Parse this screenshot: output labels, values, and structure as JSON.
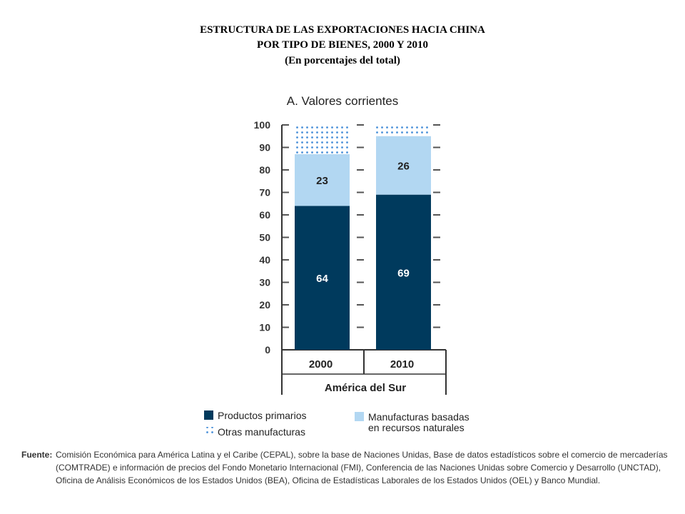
{
  "title": {
    "line1": "ESTRUCTURA DE LAS EXPORTACIONES HACIA CHINA",
    "line2": "POR TIPO DE BIENES, 2000 Y 2010",
    "line3": "(En porcentajes del total)"
  },
  "chart_data": {
    "type": "bar",
    "stacked": true,
    "title": "A. Valores corrientes",
    "categories": [
      "2000",
      "2010"
    ],
    "group_label": "América del Sur",
    "ylim": [
      0,
      100
    ],
    "y_ticks": [
      0,
      10,
      20,
      30,
      40,
      50,
      60,
      70,
      80,
      90,
      100
    ],
    "series": [
      {
        "name": "Productos primarios",
        "values": [
          64,
          69
        ],
        "labels": [
          "64",
          "69"
        ],
        "color": "#003a5d"
      },
      {
        "name": "Manufacturas basadas en recursos naturales",
        "values": [
          23,
          26
        ],
        "labels": [
          "23",
          "26"
        ],
        "color": "#b2d7f2"
      },
      {
        "name": "Otras manufacturas",
        "values": [
          13,
          5
        ],
        "color": "#4a90d9",
        "pattern": "dots"
      }
    ],
    "legend": {
      "items": [
        {
          "label": "Productos primarios"
        },
        {
          "label": "Otras manufacturas"
        },
        {
          "label_line1": "Manufacturas basadas",
          "label_line2": "en recursos naturales"
        }
      ]
    }
  },
  "source": {
    "label": "Fuente:",
    "text": "Comisión Económica para América Latina y el Caribe (CEPAL), sobre la base de Naciones Unidas, Base de datos estadísticos sobre el comercio de mercaderías (COMTRADE) e información de precios del Fondo Monetario Internacional (FMI), Conferencia de las Naciones Unidas sobre Comercio y Desarrollo (UNCTAD), Oficina de Análisis Económicos de los Estados Unidos (BEA), Oficina de Estadísticas Laborales de los Estados Unidos (OEL) y Banco Mundial."
  }
}
